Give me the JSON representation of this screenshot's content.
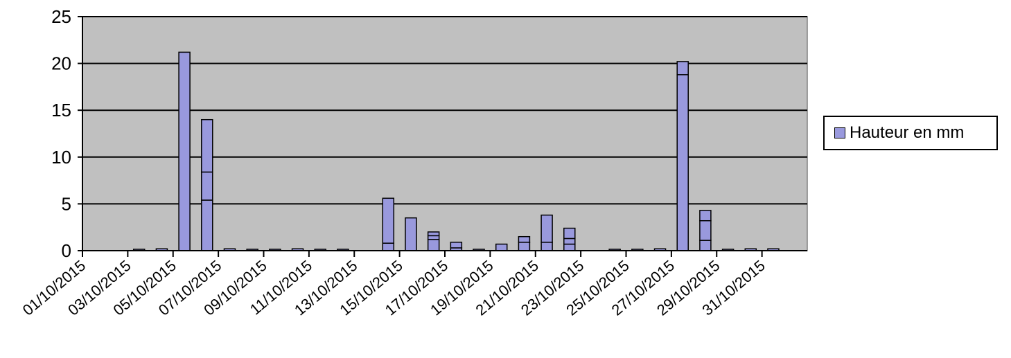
{
  "chart_data": {
    "type": "bar",
    "stacked": true,
    "title": "",
    "xlabel": "",
    "ylabel": "",
    "ylim": [
      0,
      25
    ],
    "yticks": [
      0,
      5,
      10,
      15,
      20,
      25
    ],
    "grid": true,
    "legend_position": "right",
    "plot_background": "#c0c0c0",
    "bar_color": "#9999dd",
    "dates": [
      "01/10/2015",
      "02/10/2015",
      "03/10/2015",
      "04/10/2015",
      "05/10/2015",
      "06/10/2015",
      "07/10/2015",
      "08/10/2015",
      "09/10/2015",
      "10/10/2015",
      "11/10/2015",
      "12/10/2015",
      "13/10/2015",
      "14/10/2015",
      "15/10/2015",
      "16/10/2015",
      "17/10/2015",
      "18/10/2015",
      "19/10/2015",
      "20/10/2015",
      "21/10/2015",
      "22/10/2015",
      "23/10/2015",
      "24/10/2015",
      "25/10/2015",
      "26/10/2015",
      "27/10/2015",
      "28/10/2015",
      "29/10/2015",
      "30/10/2015",
      "31/10/2015",
      "01/11/2015"
    ],
    "tick_labels": [
      "01/10/2015",
      "03/10/2015",
      "05/10/2015",
      "07/10/2015",
      "09/10/2015",
      "11/10/2015",
      "13/10/2015",
      "15/10/2015",
      "17/10/2015",
      "19/10/2015",
      "21/10/2015",
      "23/10/2015",
      "25/10/2015",
      "27/10/2015",
      "29/10/2015",
      "31/10/2015"
    ],
    "series": [
      {
        "name": "Hauteur en mm",
        "values": [
          [
            0
          ],
          [
            0
          ],
          [
            0.1
          ],
          [
            0.2
          ],
          [
            21.2
          ],
          [
            5.4,
            3.0,
            5.6
          ],
          [
            0.2
          ],
          [
            0.1
          ],
          [
            0.1
          ],
          [
            0.2
          ],
          [
            0.1
          ],
          [
            0.1
          ],
          [
            0
          ],
          [
            0.8,
            4.8
          ],
          [
            3.5
          ],
          [
            1.2,
            0.4,
            0.4
          ],
          [
            0.3,
            0.6
          ],
          [
            0.1
          ],
          [
            0.7
          ],
          [
            0.9,
            0.6
          ],
          [
            0.9,
            2.9
          ],
          [
            0.7,
            0.6,
            1.1
          ],
          [
            0
          ],
          [
            0.1
          ],
          [
            0.1
          ],
          [
            0.2
          ],
          [
            18.8,
            1.4
          ],
          [
            1.1,
            2.1,
            1.1
          ],
          [
            0.1
          ],
          [
            0.2
          ],
          [
            0.2
          ],
          [
            0
          ]
        ]
      }
    ]
  }
}
